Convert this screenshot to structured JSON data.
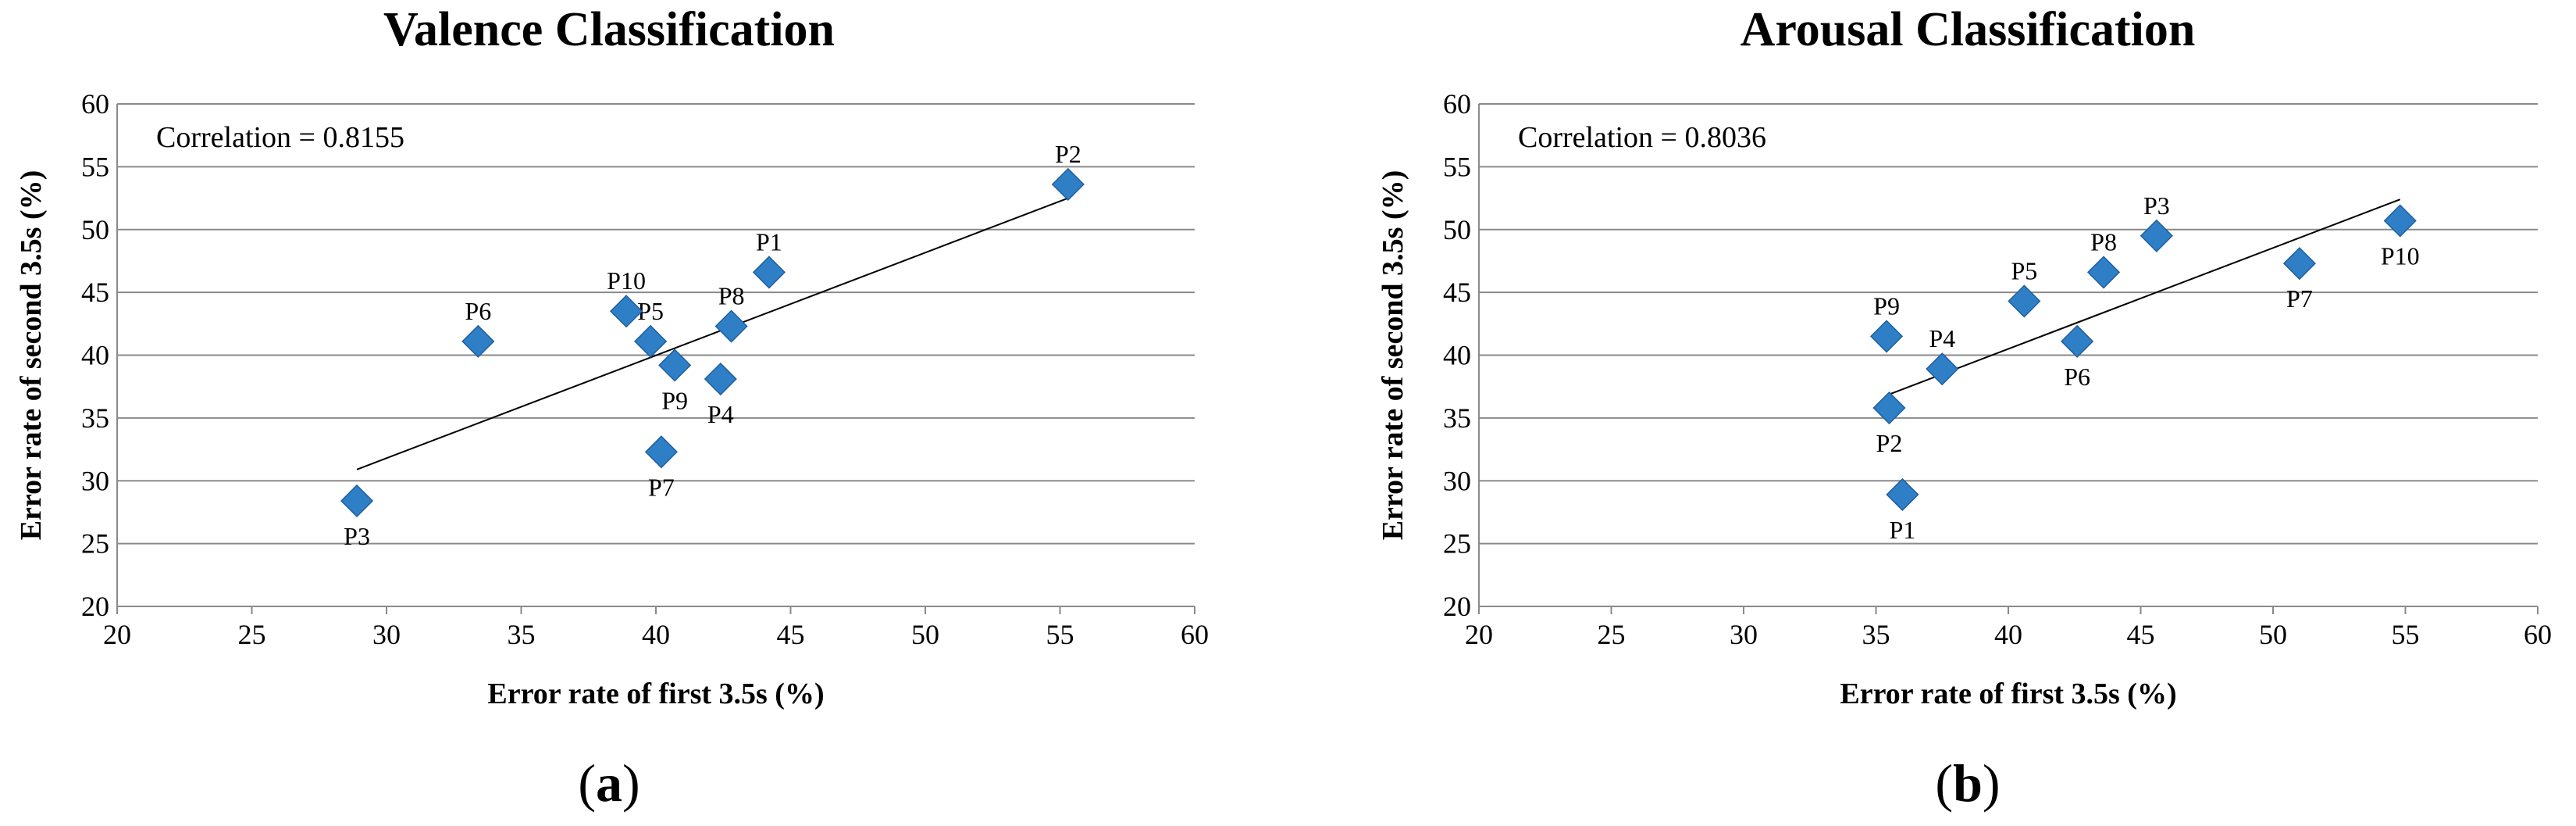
{
  "chart_data": [
    {
      "type": "scatter",
      "title": "Valence Classification",
      "xlabel": "Error rate of first 3.5s (%)",
      "ylabel": "Error rate of second 3.5s  (%)",
      "xlim": [
        20,
        60
      ],
      "ylim": [
        20,
        60
      ],
      "xticks": [
        20,
        25,
        30,
        35,
        40,
        45,
        50,
        55,
        60
      ],
      "yticks": [
        20,
        25,
        30,
        35,
        40,
        45,
        50,
        55,
        60
      ],
      "grid": "horizontal",
      "annotation": "Correlation = 0.8155",
      "caption_letter": "a",
      "marker_color": "#2f7fc6",
      "points": [
        {
          "label": "P1",
          "x": 44.2,
          "y": 46.6,
          "label_pos": "above"
        },
        {
          "label": "P2",
          "x": 55.3,
          "y": 53.6,
          "label_pos": "above"
        },
        {
          "label": "P3",
          "x": 28.9,
          "y": 28.4,
          "label_pos": "below"
        },
        {
          "label": "P4",
          "x": 42.4,
          "y": 38.1,
          "label_pos": "below"
        },
        {
          "label": "P5",
          "x": 39.8,
          "y": 41.1,
          "label_pos": "above"
        },
        {
          "label": "P6",
          "x": 33.4,
          "y": 41.1,
          "label_pos": "above"
        },
        {
          "label": "P7",
          "x": 40.2,
          "y": 32.3,
          "label_pos": "below"
        },
        {
          "label": "P8",
          "x": 42.8,
          "y": 42.3,
          "label_pos": "above"
        },
        {
          "label": "P9",
          "x": 40.7,
          "y": 39.2,
          "label_pos": "below"
        },
        {
          "label": "P10",
          "x": 38.9,
          "y": 43.5,
          "label_pos": "above"
        }
      ],
      "trendline": {
        "x": [
          28.9,
          55.3
        ],
        "y": [
          30.9,
          52.5
        ]
      }
    },
    {
      "type": "scatter",
      "title": "Arousal Classification",
      "xlabel": "Error rate of first 3.5s (%)",
      "ylabel": "Error rate of second 3.5s  (%)",
      "xlim": [
        20,
        60
      ],
      "ylim": [
        20,
        60
      ],
      "xticks": [
        20,
        25,
        30,
        35,
        40,
        45,
        50,
        55,
        60
      ],
      "yticks": [
        20,
        25,
        30,
        35,
        40,
        45,
        50,
        55,
        60
      ],
      "grid": "horizontal",
      "annotation": "Correlation = 0.8036",
      "caption_letter": "b",
      "marker_color": "#2f7fc6",
      "points": [
        {
          "label": "P1",
          "x": 36.0,
          "y": 28.9,
          "label_pos": "below"
        },
        {
          "label": "P2",
          "x": 35.5,
          "y": 35.8,
          "label_pos": "below"
        },
        {
          "label": "P3",
          "x": 45.6,
          "y": 49.5,
          "label_pos": "above"
        },
        {
          "label": "P4",
          "x": 37.5,
          "y": 38.9,
          "label_pos": "above"
        },
        {
          "label": "P5",
          "x": 40.6,
          "y": 44.3,
          "label_pos": "above"
        },
        {
          "label": "P6",
          "x": 42.6,
          "y": 41.1,
          "label_pos": "below"
        },
        {
          "label": "P7",
          "x": 51.0,
          "y": 47.3,
          "label_pos": "below"
        },
        {
          "label": "P8",
          "x": 43.6,
          "y": 46.6,
          "label_pos": "above"
        },
        {
          "label": "P9",
          "x": 35.4,
          "y": 41.5,
          "label_pos": "above"
        },
        {
          "label": "P10",
          "x": 54.8,
          "y": 50.7,
          "label_pos": "below"
        }
      ],
      "trendline": {
        "x": [
          35.4,
          54.8
        ],
        "y": [
          36.8,
          52.4
        ]
      }
    }
  ]
}
